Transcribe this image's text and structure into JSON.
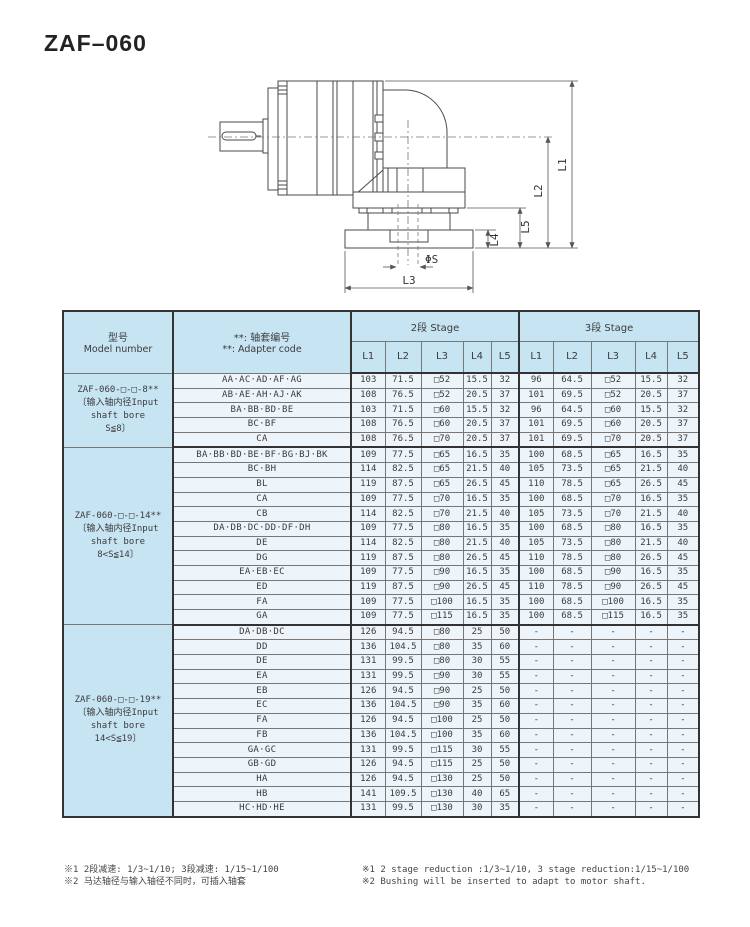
{
  "title": "ZAF–060",
  "drawing": {
    "dim_labels": {
      "l1": "L1",
      "l2": "L2",
      "l3": "L3",
      "l4": "L4",
      "l5": "L5",
      "phi_s": "ΦS"
    }
  },
  "table": {
    "header": {
      "model_cn": "型号",
      "model_en": "Model number",
      "adapter_cn": "**: 轴套编号",
      "adapter_en": "**: Adapter code",
      "stage2": "2段 Stage",
      "stage3": "3段 Stage",
      "dims": [
        "L1",
        "L2",
        "L3",
        "L4",
        "L5"
      ]
    },
    "groups": [
      {
        "model_lines": [
          "ZAF-060-□-□-8**",
          "〔输入轴内径Input",
          "shaft bore",
          "S≦8〕"
        ],
        "rows": [
          {
            "adapter": "AA·AC·AD·AF·AG",
            "s2": [
              "103",
              "71.5",
              "□52",
              "15.5",
              "32"
            ],
            "s3": [
              "96",
              "64.5",
              "□52",
              "15.5",
              "32"
            ]
          },
          {
            "adapter": "AB·AE·AH·AJ·AK",
            "s2": [
              "108",
              "76.5",
              "□52",
              "20.5",
              "37"
            ],
            "s3": [
              "101",
              "69.5",
              "□52",
              "20.5",
              "37"
            ]
          },
          {
            "adapter": "BA·BB·BD·BE",
            "s2": [
              "103",
              "71.5",
              "□60",
              "15.5",
              "32"
            ],
            "s3": [
              "96",
              "64.5",
              "□60",
              "15.5",
              "32"
            ]
          },
          {
            "adapter": "BC·BF",
            "s2": [
              "108",
              "76.5",
              "□60",
              "20.5",
              "37"
            ],
            "s3": [
              "101",
              "69.5",
              "□60",
              "20.5",
              "37"
            ]
          },
          {
            "adapter": "CA",
            "s2": [
              "108",
              "76.5",
              "□70",
              "20.5",
              "37"
            ],
            "s3": [
              "101",
              "69.5",
              "□70",
              "20.5",
              "37"
            ]
          }
        ]
      },
      {
        "model_lines": [
          "ZAF-060-□-□-14**",
          "〔输入轴内径Input",
          "shaft bore",
          "8<S≦14〕"
        ],
        "rows": [
          {
            "adapter": "BA·BB·BD·BE·BF·BG·BJ·BK",
            "s2": [
              "109",
              "77.5",
              "□65",
              "16.5",
              "35"
            ],
            "s3": [
              "100",
              "68.5",
              "□65",
              "16.5",
              "35"
            ]
          },
          {
            "adapter": "BC·BH",
            "s2": [
              "114",
              "82.5",
              "□65",
              "21.5",
              "40"
            ],
            "s3": [
              "105",
              "73.5",
              "□65",
              "21.5",
              "40"
            ]
          },
          {
            "adapter": "BL",
            "s2": [
              "119",
              "87.5",
              "□65",
              "26.5",
              "45"
            ],
            "s3": [
              "110",
              "78.5",
              "□65",
              "26.5",
              "45"
            ]
          },
          {
            "adapter": "CA",
            "s2": [
              "109",
              "77.5",
              "□70",
              "16.5",
              "35"
            ],
            "s3": [
              "100",
              "68.5",
              "□70",
              "16.5",
              "35"
            ]
          },
          {
            "adapter": "CB",
            "s2": [
              "114",
              "82.5",
              "□70",
              "21.5",
              "40"
            ],
            "s3": [
              "105",
              "73.5",
              "□70",
              "21.5",
              "40"
            ]
          },
          {
            "adapter": "DA·DB·DC·DD·DF·DH",
            "s2": [
              "109",
              "77.5",
              "□80",
              "16.5",
              "35"
            ],
            "s3": [
              "100",
              "68.5",
              "□80",
              "16.5",
              "35"
            ]
          },
          {
            "adapter": "DE",
            "s2": [
              "114",
              "82.5",
              "□80",
              "21.5",
              "40"
            ],
            "s3": [
              "105",
              "73.5",
              "□80",
              "21.5",
              "40"
            ]
          },
          {
            "adapter": "DG",
            "s2": [
              "119",
              "87.5",
              "□80",
              "26.5",
              "45"
            ],
            "s3": [
              "110",
              "78.5",
              "□80",
              "26.5",
              "45"
            ]
          },
          {
            "adapter": "EA·EB·EC",
            "s2": [
              "109",
              "77.5",
              "□90",
              "16.5",
              "35"
            ],
            "s3": [
              "100",
              "68.5",
              "□90",
              "16.5",
              "35"
            ]
          },
          {
            "adapter": "ED",
            "s2": [
              "119",
              "87.5",
              "□90",
              "26.5",
              "45"
            ],
            "s3": [
              "110",
              "78.5",
              "□90",
              "26.5",
              "45"
            ]
          },
          {
            "adapter": "FA",
            "s2": [
              "109",
              "77.5",
              "□100",
              "16.5",
              "35"
            ],
            "s3": [
              "100",
              "68.5",
              "□100",
              "16.5",
              "35"
            ]
          },
          {
            "adapter": "GA",
            "s2": [
              "109",
              "77.5",
              "□115",
              "16.5",
              "35"
            ],
            "s3": [
              "100",
              "68.5",
              "□115",
              "16.5",
              "35"
            ]
          }
        ]
      },
      {
        "model_lines": [
          "ZAF-060-□-□-19**",
          "〔输入轴内径Input",
          "shaft bore",
          "14<S≦19〕"
        ],
        "rows": [
          {
            "adapter": "DA·DB·DC",
            "s2": [
              "126",
              "94.5",
              "□80",
              "25",
              "50"
            ],
            "s3": [
              "-",
              "-",
              "-",
              "-",
              "-"
            ]
          },
          {
            "adapter": "DD",
            "s2": [
              "136",
              "104.5",
              "□80",
              "35",
              "60"
            ],
            "s3": [
              "-",
              "-",
              "-",
              "-",
              "-"
            ]
          },
          {
            "adapter": "DE",
            "s2": [
              "131",
              "99.5",
              "□80",
              "30",
              "55"
            ],
            "s3": [
              "-",
              "-",
              "-",
              "-",
              "-"
            ]
          },
          {
            "adapter": "EA",
            "s2": [
              "131",
              "99.5",
              "□90",
              "30",
              "55"
            ],
            "s3": [
              "-",
              "-",
              "-",
              "-",
              "-"
            ]
          },
          {
            "adapter": "EB",
            "s2": [
              "126",
              "94.5",
              "□90",
              "25",
              "50"
            ],
            "s3": [
              "-",
              "-",
              "-",
              "-",
              "-"
            ]
          },
          {
            "adapter": "EC",
            "s2": [
              "136",
              "104.5",
              "□90",
              "35",
              "60"
            ],
            "s3": [
              "-",
              "-",
              "-",
              "-",
              "-"
            ]
          },
          {
            "adapter": "FA",
            "s2": [
              "126",
              "94.5",
              "□100",
              "25",
              "50"
            ],
            "s3": [
              "-",
              "-",
              "-",
              "-",
              "-"
            ]
          },
          {
            "adapter": "FB",
            "s2": [
              "136",
              "104.5",
              "□100",
              "35",
              "60"
            ],
            "s3": [
              "-",
              "-",
              "-",
              "-",
              "-"
            ]
          },
          {
            "adapter": "GA·GC",
            "s2": [
              "131",
              "99.5",
              "□115",
              "30",
              "55"
            ],
            "s3": [
              "-",
              "-",
              "-",
              "-",
              "-"
            ]
          },
          {
            "adapter": "GB·GD",
            "s2": [
              "126",
              "94.5",
              "□115",
              "25",
              "50"
            ],
            "s3": [
              "-",
              "-",
              "-",
              "-",
              "-"
            ]
          },
          {
            "adapter": "HA",
            "s2": [
              "126",
              "94.5",
              "□130",
              "25",
              "50"
            ],
            "s3": [
              "-",
              "-",
              "-",
              "-",
              "-"
            ]
          },
          {
            "adapter": "HB",
            "s2": [
              "141",
              "109.5",
              "□130",
              "40",
              "65"
            ],
            "s3": [
              "-",
              "-",
              "-",
              "-",
              "-"
            ]
          },
          {
            "adapter": "HC·HD·HE",
            "s2": [
              "131",
              "99.5",
              "□130",
              "30",
              "35"
            ],
            "s3": [
              "-",
              "-",
              "-",
              "-",
              "-"
            ]
          }
        ]
      }
    ]
  },
  "footnotes": {
    "cn": [
      "※1 2段减速: 1/3~1/10; 3段减速: 1/15~1/100",
      "※2 马达轴径与输入轴径不同时，可插入轴套"
    ],
    "en": [
      "※1 2 stage reduction :1/3~1/10, 3 stage reduction:1/15~1/100",
      "※2 Bushing will be inserted to adapt to motor shaft."
    ]
  },
  "colors": {
    "header_blue": "#c7e4f3",
    "row_blue": "#edf5fa",
    "border_dark": "#333333",
    "border_light": "#777777"
  }
}
